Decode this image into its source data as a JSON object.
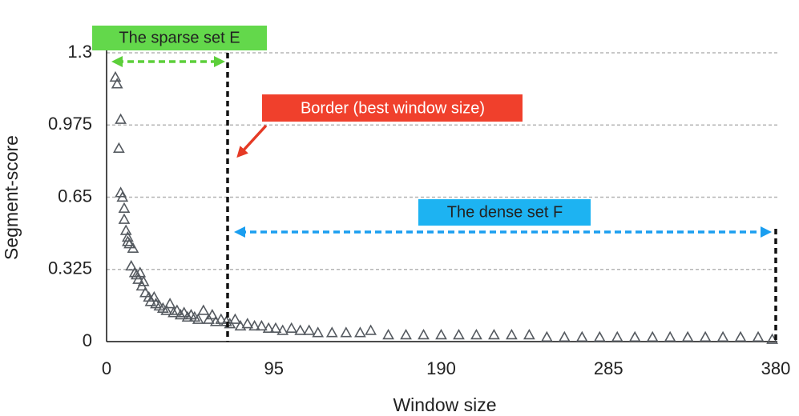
{
  "chart_data": {
    "type": "scatter",
    "x_label": "Window size",
    "y_label": "Segment-score",
    "xlim": [
      0,
      380
    ],
    "xticks": [
      0,
      95,
      190,
      285,
      380
    ],
    "ylim": [
      0,
      1.3
    ],
    "yticks": [
      0,
      0.325,
      0.65,
      0.975,
      1.3
    ],
    "grid": true,
    "color": "#555a60",
    "annotations": {
      "sparse": "The sparse set E",
      "border": "Border (best window size)",
      "dense": "The dense set F"
    },
    "x": [
      5,
      6,
      7,
      8,
      8,
      9,
      10,
      10,
      11,
      12,
      12,
      13,
      14,
      15,
      16,
      17,
      18,
      19,
      20,
      21,
      22,
      24,
      25,
      27,
      28,
      30,
      32,
      34,
      36,
      38,
      40,
      42,
      44,
      46,
      48,
      50,
      52,
      55,
      58,
      60,
      62,
      65,
      68,
      70,
      73,
      76,
      80,
      84,
      88,
      92,
      96,
      100,
      105,
      110,
      115,
      120,
      128,
      136,
      144,
      150,
      160,
      170,
      180,
      190,
      200,
      210,
      220,
      230,
      240,
      250,
      260,
      270,
      280,
      290,
      300,
      310,
      320,
      330,
      340,
      350,
      360,
      370,
      378
    ],
    "values": [
      1.19,
      1.16,
      0.87,
      1.0,
      0.67,
      0.65,
      0.6,
      0.55,
      0.5,
      0.47,
      0.45,
      0.44,
      0.34,
      0.42,
      0.31,
      0.3,
      0.28,
      0.31,
      0.25,
      0.27,
      0.22,
      0.2,
      0.18,
      0.2,
      0.17,
      0.16,
      0.15,
      0.14,
      0.17,
      0.13,
      0.14,
      0.12,
      0.13,
      0.11,
      0.12,
      0.11,
      0.1,
      0.14,
      0.1,
      0.12,
      0.09,
      0.1,
      0.09,
      0.08,
      0.1,
      0.07,
      0.08,
      0.07,
      0.07,
      0.06,
      0.06,
      0.05,
      0.06,
      0.05,
      0.05,
      0.04,
      0.04,
      0.04,
      0.04,
      0.05,
      0.03,
      0.03,
      0.03,
      0.03,
      0.03,
      0.03,
      0.03,
      0.03,
      0.03,
      0.02,
      0.02,
      0.02,
      0.02,
      0.02,
      0.02,
      0.02,
      0.02,
      0.02,
      0.02,
      0.02,
      0.02,
      0.02,
      0.01
    ]
  }
}
